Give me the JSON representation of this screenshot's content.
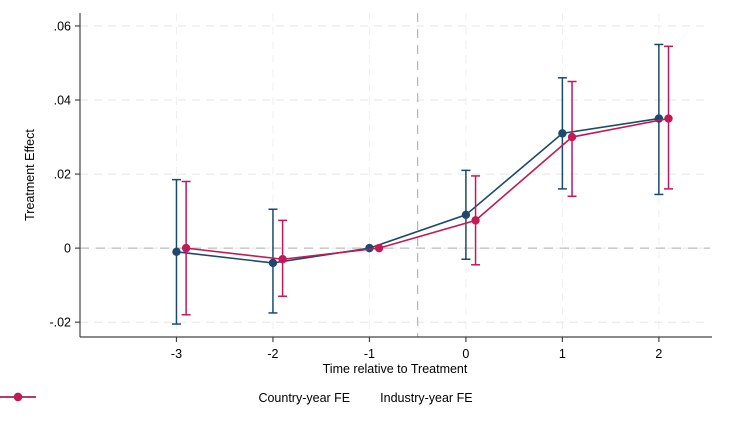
{
  "chart_data": {
    "type": "line",
    "title": "",
    "xlabel": "Time relative to Treatment",
    "ylabel": "Treatment Effect",
    "xlim": [
      -4.0,
      2.53
    ],
    "ylim": [
      -0.024,
      0.0635
    ],
    "xticks": {
      "values": [
        -3,
        -2,
        -1,
        0,
        1,
        2
      ],
      "labels": [
        "-3",
        "-2",
        "-1",
        "0",
        "1",
        "2"
      ]
    },
    "yticks": {
      "values": [
        -0.02,
        0,
        0.02,
        0.04,
        0.06
      ],
      "labels": [
        "-.02",
        "0",
        ".02",
        ".04",
        ".06"
      ]
    },
    "grid": {
      "horizontal": true,
      "vertical": true,
      "h_color": "#e5e5e5",
      "v_color": "#efefef",
      "dash": "8 6"
    },
    "reference_lines": [
      {
        "orientation": "horizontal",
        "value": 0,
        "color": "#bcbcbc",
        "dash": "9 7"
      },
      {
        "orientation": "vertical",
        "value": -0.5,
        "color": "#b5b5b5",
        "dash": "9 7"
      }
    ],
    "x": [
      -3,
      -2,
      -1,
      0,
      1,
      2
    ],
    "series": [
      {
        "name": "Country-year FE",
        "color": "#1b4a6e",
        "x_offset": 0,
        "values": [
          -0.001,
          -0.004,
          0,
          0.009,
          0.031,
          0.035
        ],
        "ci_low": [
          -0.0205,
          -0.0175,
          null,
          -0.003,
          0.016,
          0.0145
        ],
        "ci_high": [
          0.0185,
          0.0105,
          null,
          0.021,
          0.046,
          0.055
        ]
      },
      {
        "name": "Industry-year FE",
        "color": "#c11a55",
        "x_offset": 0.1,
        "values": [
          0,
          -0.003,
          0,
          0.0075,
          0.03,
          0.035
        ],
        "ci_low": [
          -0.018,
          -0.013,
          null,
          -0.0045,
          0.014,
          0.016
        ],
        "ci_high": [
          0.018,
          0.0075,
          null,
          0.0195,
          0.045,
          0.0545
        ]
      }
    ],
    "legend": {
      "position": "bottom-center"
    },
    "axis_color": "#454545",
    "tick_label_color": "#000000"
  }
}
